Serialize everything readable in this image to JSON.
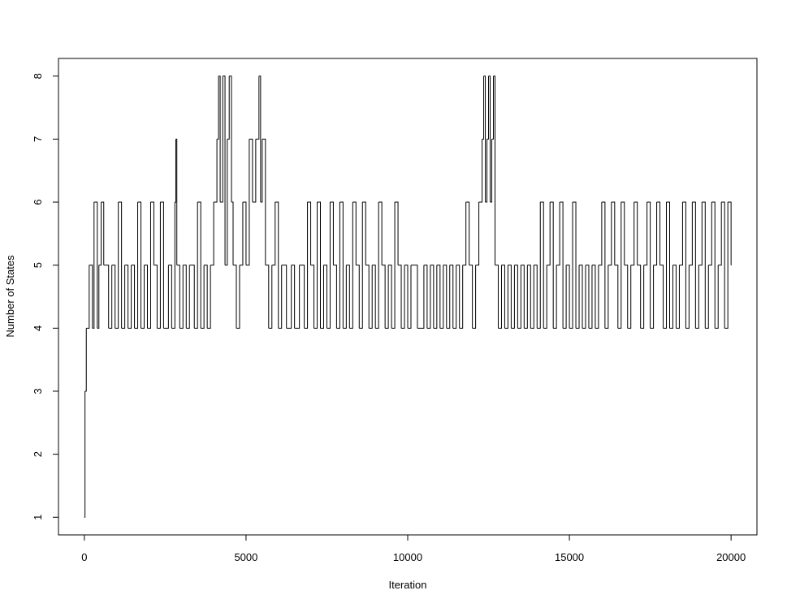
{
  "chart_data": {
    "type": "line",
    "step": "post",
    "color": "#000000",
    "xlabel": "Iteration",
    "ylabel": "Number of States",
    "xlim": [
      -800,
      20800
    ],
    "ylim": [
      0.72,
      8.28
    ],
    "xticks": [
      0,
      5000,
      10000,
      15000,
      20000
    ],
    "yticks": [
      1,
      2,
      3,
      4,
      5,
      6,
      7,
      8
    ],
    "grid": false,
    "x": [
      0,
      20,
      60,
      150,
      250,
      300,
      400,
      450,
      520,
      600,
      750,
      850,
      950,
      1050,
      1150,
      1250,
      1350,
      1450,
      1550,
      1650,
      1750,
      1850,
      1950,
      2050,
      2150,
      2250,
      2350,
      2450,
      2600,
      2700,
      2800,
      2830,
      2860,
      2950,
      3050,
      3150,
      3250,
      3400,
      3500,
      3600,
      3700,
      3800,
      3900,
      4000,
      4100,
      4150,
      4200,
      4280,
      4350,
      4420,
      4480,
      4550,
      4600,
      4700,
      4800,
      4900,
      5000,
      5100,
      5200,
      5300,
      5400,
      5450,
      5500,
      5600,
      5700,
      5800,
      5900,
      6000,
      6100,
      6250,
      6400,
      6500,
      6650,
      6800,
      6900,
      7000,
      7100,
      7200,
      7300,
      7400,
      7500,
      7600,
      7700,
      7800,
      7900,
      8000,
      8100,
      8200,
      8300,
      8400,
      8500,
      8600,
      8700,
      8800,
      8900,
      9000,
      9100,
      9200,
      9300,
      9400,
      9500,
      9600,
      9700,
      9800,
      9900,
      10000,
      10100,
      10300,
      10500,
      10600,
      10700,
      10800,
      10900,
      11000,
      11100,
      11200,
      11300,
      11400,
      11500,
      11600,
      11700,
      11800,
      11900,
      12000,
      12100,
      12200,
      12300,
      12350,
      12400,
      12450,
      12500,
      12550,
      12600,
      12650,
      12700,
      12800,
      12900,
      13000,
      13100,
      13200,
      13300,
      13400,
      13500,
      13600,
      13700,
      13800,
      13900,
      14000,
      14100,
      14200,
      14300,
      14400,
      14500,
      14600,
      14700,
      14800,
      14900,
      15000,
      15100,
      15200,
      15300,
      15400,
      15500,
      15600,
      15700,
      15800,
      15900,
      16000,
      16100,
      16200,
      16300,
      16400,
      16500,
      16600,
      16700,
      16800,
      16900,
      17000,
      17100,
      17200,
      17300,
      17400,
      17500,
      17600,
      17700,
      17800,
      17900,
      18000,
      18100,
      18200,
      18300,
      18400,
      18500,
      18600,
      18700,
      18800,
      18900,
      19000,
      19100,
      19200,
      19300,
      19400,
      19500,
      19600,
      19700,
      19800,
      19900,
      20000
    ],
    "values": [
      1,
      3,
      4,
      5,
      4,
      6,
      4,
      5,
      6,
      5,
      4,
      5,
      4,
      6,
      4,
      5,
      4,
      5,
      4,
      6,
      4,
      5,
      4,
      6,
      5,
      4,
      6,
      4,
      5,
      4,
      6,
      7,
      5,
      4,
      5,
      4,
      5,
      4,
      6,
      4,
      5,
      4,
      5,
      6,
      7,
      8,
      6,
      8,
      5,
      7,
      8,
      6,
      5,
      4,
      5,
      6,
      5,
      7,
      6,
      7,
      8,
      6,
      7,
      5,
      4,
      5,
      6,
      4,
      5,
      4,
      5,
      4,
      5,
      4,
      6,
      5,
      4,
      6,
      4,
      5,
      4,
      6,
      5,
      4,
      6,
      4,
      5,
      4,
      6,
      5,
      4,
      6,
      5,
      4,
      5,
      4,
      6,
      5,
      4,
      5,
      4,
      6,
      5,
      4,
      5,
      4,
      5,
      4,
      5,
      4,
      5,
      4,
      5,
      4,
      5,
      4,
      5,
      4,
      5,
      4,
      5,
      6,
      5,
      4,
      5,
      6,
      7,
      8,
      6,
      7,
      8,
      6,
      7,
      8,
      5,
      4,
      5,
      4,
      5,
      4,
      5,
      4,
      5,
      4,
      5,
      4,
      5,
      4,
      6,
      4,
      5,
      6,
      4,
      5,
      6,
      4,
      5,
      4,
      6,
      4,
      5,
      4,
      5,
      4,
      5,
      4,
      5,
      6,
      4,
      5,
      6,
      5,
      4,
      6,
      5,
      4,
      5,
      6,
      5,
      4,
      5,
      6,
      4,
      5,
      6,
      5,
      4,
      6,
      4,
      5,
      4,
      5,
      6,
      4,
      5,
      6,
      4,
      5,
      6,
      4,
      5,
      6,
      4,
      5,
      6,
      4,
      6,
      5
    ]
  }
}
